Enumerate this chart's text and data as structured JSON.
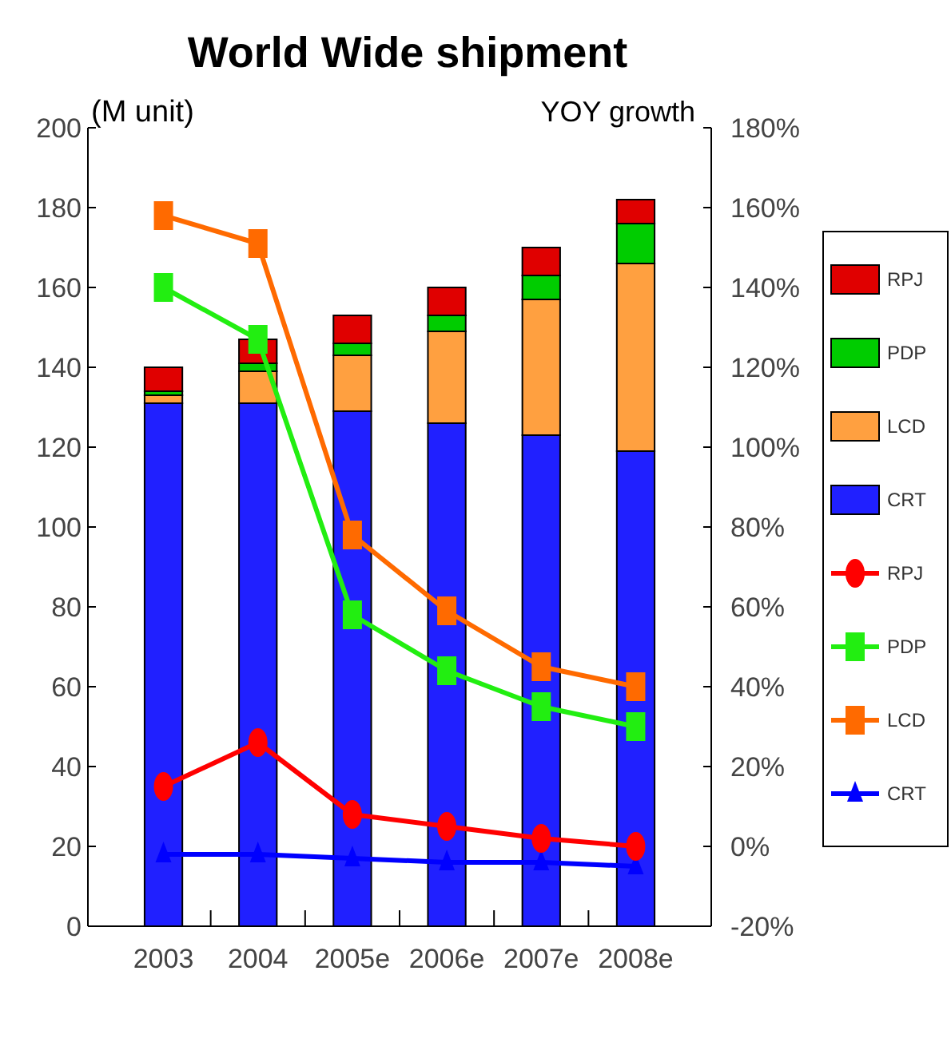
{
  "chart_data": {
    "type": "bar",
    "title": "World Wide shipment",
    "ylabel": "(M unit)",
    "y2label": "YOY growth",
    "categories": [
      "2003",
      "2004",
      "2005e",
      "2006e",
      "2007e",
      "2008e"
    ],
    "stacked": true,
    "series": [
      {
        "name": "CRT",
        "color": "#2020ff",
        "values": [
          131,
          131,
          129,
          126,
          123,
          119
        ]
      },
      {
        "name": "LCD",
        "color": "#ffa040",
        "values": [
          2,
          8,
          14,
          23,
          34,
          47
        ]
      },
      {
        "name": "PDP",
        "color": "#00cc00",
        "values": [
          1,
          2,
          3,
          4,
          6,
          10
        ]
      },
      {
        "name": "RPJ",
        "color": "#e00000",
        "values": [
          6,
          6,
          7,
          7,
          7,
          6
        ]
      },
      {
        "name": "CRT",
        "type": "line",
        "axis": "y2",
        "marker": "triangle",
        "color": "#0000ff",
        "values": [
          -2,
          -2,
          -3,
          -4,
          -4,
          -5
        ]
      },
      {
        "name": "LCD",
        "type": "line",
        "axis": "y2",
        "marker": "square",
        "color": "#ff6a00",
        "values": [
          158,
          151,
          78,
          59,
          45,
          40
        ]
      },
      {
        "name": "PDP",
        "type": "line",
        "axis": "y2",
        "marker": "square",
        "color": "#22ee11",
        "values": [
          140,
          127,
          58,
          44,
          35,
          30
        ]
      },
      {
        "name": "RPJ",
        "type": "line",
        "axis": "y2",
        "marker": "circle",
        "color": "#ff0000",
        "values": [
          15,
          26,
          8,
          5,
          2,
          0
        ]
      }
    ],
    "ylim": [
      0,
      200
    ],
    "yticks": [
      0,
      20,
      40,
      60,
      80,
      100,
      120,
      140,
      160,
      180,
      200
    ],
    "y2lim": [
      -20,
      180
    ],
    "y2ticks": [
      {
        "value": -20,
        "label": "-20%"
      },
      {
        "value": 0,
        "label": "0%"
      },
      {
        "value": 20,
        "label": "20%"
      },
      {
        "value": 40,
        "label": "40%"
      },
      {
        "value": 60,
        "label": "60%"
      },
      {
        "value": 80,
        "label": "80%"
      },
      {
        "value": 100,
        "label": "100%"
      },
      {
        "value": 120,
        "label": "120%"
      },
      {
        "value": 140,
        "label": "140%"
      },
      {
        "value": 160,
        "label": "160%"
      },
      {
        "value": 180,
        "label": "180%"
      }
    ],
    "grid": false,
    "legend": "right"
  }
}
